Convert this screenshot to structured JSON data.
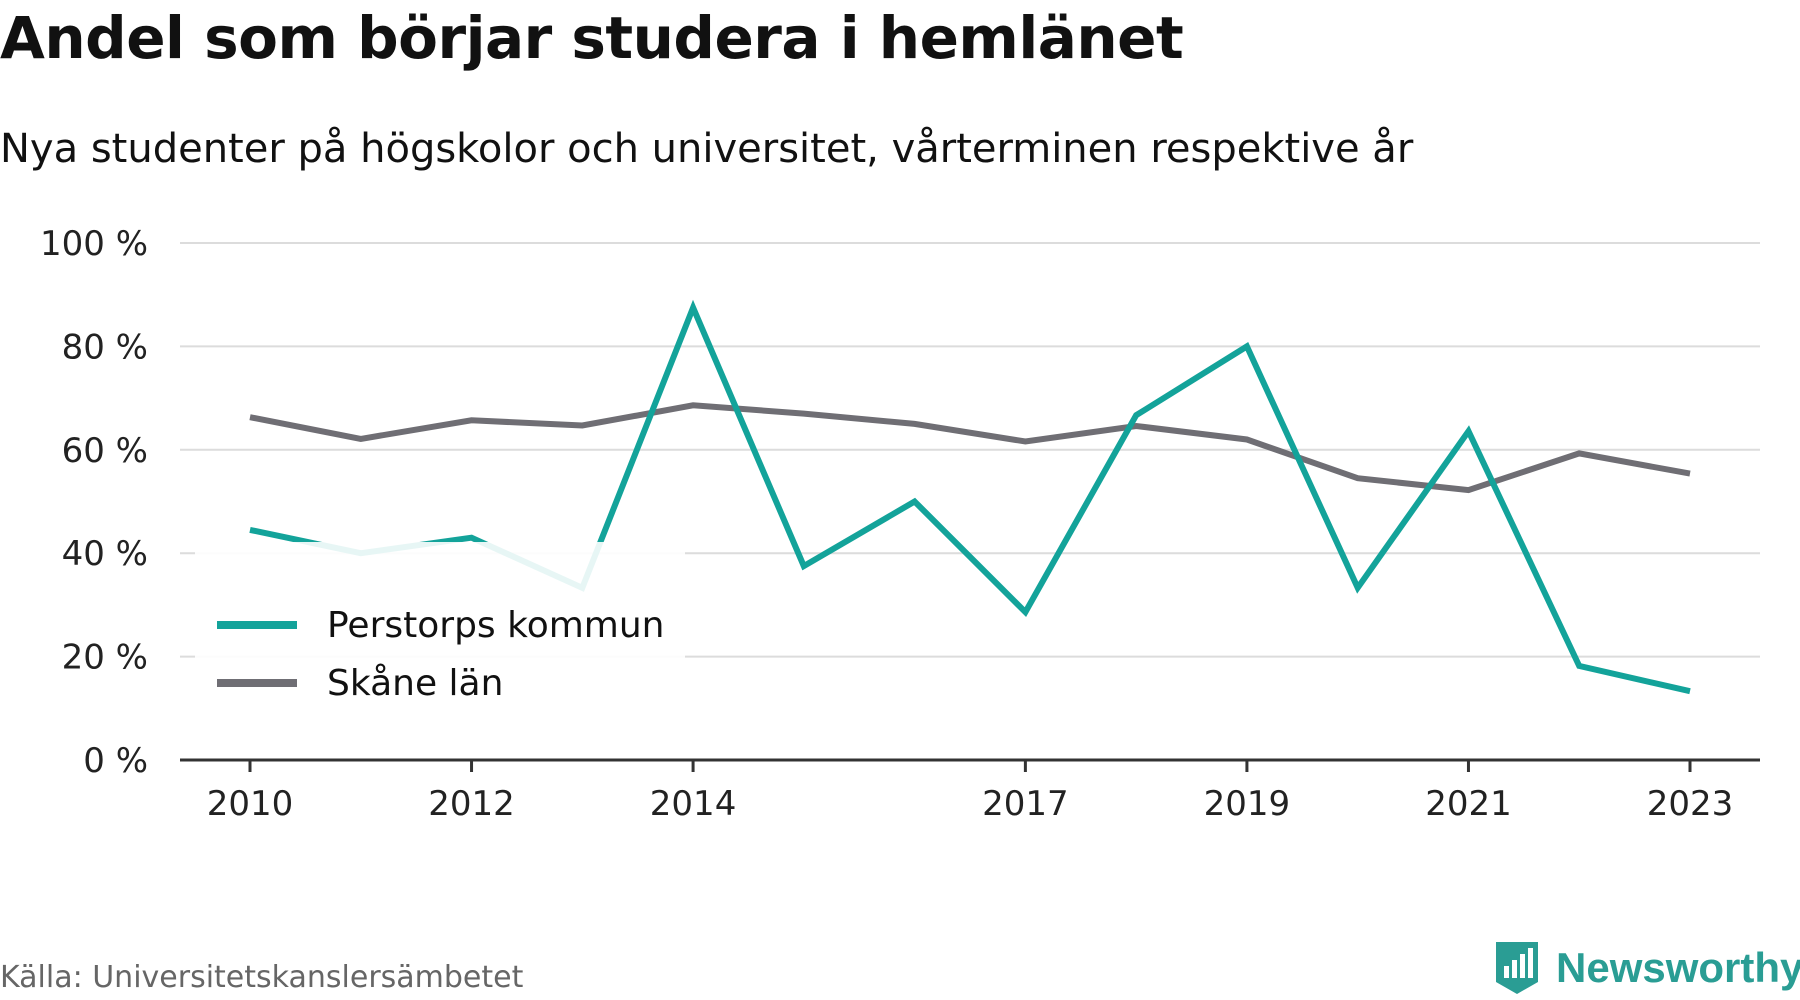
{
  "header": {
    "title": "Andel som börjar studera i hemlänet",
    "subtitle": "Nya studenter på högskolor och universitet, vårterminen respektive år"
  },
  "footer": {
    "source": "Källa: Universitetskanslersämbetet",
    "brand": "Newsworthy",
    "brand_icon": "bar-chart-badge-icon",
    "brand_color": "#2a9d94"
  },
  "chart_data": {
    "type": "line",
    "x": [
      2010,
      2011,
      2012,
      2013,
      2014,
      2015,
      2016,
      2017,
      2018,
      2019,
      2020,
      2021,
      2022,
      2023
    ],
    "x_tick_labels": [
      "2010",
      "2012",
      "2014",
      "2017",
      "2019",
      "2021",
      "2023"
    ],
    "y_tick_labels": [
      "0 %",
      "20 %",
      "40 %",
      "60 %",
      "80 %",
      "100 %"
    ],
    "y_ticks": [
      0,
      20,
      40,
      60,
      80,
      100
    ],
    "ylim": [
      0,
      100
    ],
    "grid": true,
    "legend_position": "bottom-left",
    "series": [
      {
        "name": "Perstorps kommun",
        "color": "#13a39a",
        "values": [
          44.5,
          40.0,
          43.0,
          33.3,
          87.5,
          37.5,
          50.0,
          28.6,
          66.7,
          80.0,
          33.3,
          63.6,
          18.2,
          13.3
        ]
      },
      {
        "name": "Skåne län",
        "color": "#6f6e74",
        "values": [
          66.3,
          62.1,
          65.7,
          64.7,
          68.6,
          67.0,
          65.0,
          61.6,
          64.6,
          62.0,
          54.5,
          52.2,
          59.3,
          55.4
        ]
      }
    ]
  }
}
